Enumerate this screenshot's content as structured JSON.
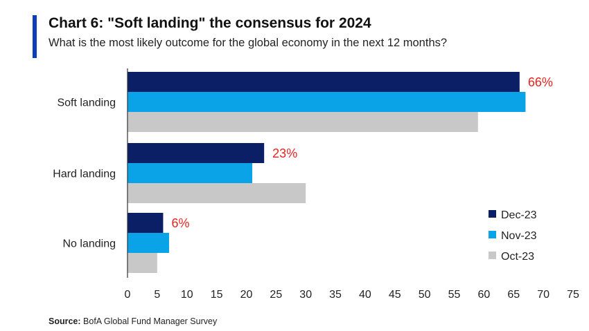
{
  "header": {
    "title": "Chart 6: \"Soft landing\" the consensus for 2024",
    "subtitle": "What is the most likely outcome for the global economy in the next 12 months?"
  },
  "footer": {
    "source_label": "Source:",
    "source_text": "BofA Global Fund Manager Survey"
  },
  "colors": {
    "accent": "#0b3fb8",
    "highlight_label": "#e8231f",
    "axis": "#333333"
  },
  "chart_data": {
    "type": "bar",
    "orientation": "horizontal",
    "categories": [
      "Soft landing",
      "Hard landing",
      "No landing"
    ],
    "series": [
      {
        "name": "Dec-23",
        "color": "#0b1f66",
        "values": [
          66,
          23,
          6
        ]
      },
      {
        "name": "Nov-23",
        "color": "#0aa3e8",
        "values": [
          67,
          21,
          7
        ]
      },
      {
        "name": "Oct-23",
        "color": "#c8c8c8",
        "values": [
          59,
          30,
          5
        ]
      }
    ],
    "data_labels": [
      {
        "series": "Dec-23",
        "category": "Soft landing",
        "text": "66%"
      },
      {
        "series": "Dec-23",
        "category": "Hard landing",
        "text": "23%"
      },
      {
        "series": "Dec-23",
        "category": "No landing",
        "text": "6%"
      }
    ],
    "xlim": [
      0,
      75
    ],
    "xticks": [
      0,
      5,
      10,
      15,
      20,
      25,
      30,
      35,
      40,
      45,
      50,
      55,
      60,
      65,
      70,
      75
    ],
    "grid": false,
    "legend_position": "bottom-right"
  }
}
